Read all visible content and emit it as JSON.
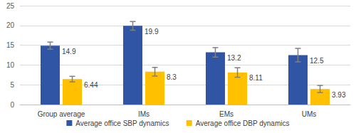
{
  "chart_data": {
    "type": "bar",
    "categories": [
      "Group average",
      "IMs",
      "EMs",
      "UMs"
    ],
    "series": [
      {
        "name": "Average office SBP dynamics",
        "color": "#2f55a4",
        "values": [
          14.9,
          19.9,
          13.2,
          12.5
        ],
        "errors": [
          0.9,
          1.1,
          1.2,
          1.7
        ]
      },
      {
        "name": "Average office DBP dynamics",
        "color": "#ffc000",
        "values": [
          6.44,
          8.3,
          8.11,
          3.93
        ],
        "errors": [
          0.7,
          1.1,
          1.2,
          0.9
        ]
      }
    ],
    "ylim": [
      0,
      25
    ],
    "yticks": [
      0,
      5,
      10,
      15,
      20,
      25
    ],
    "grid": true,
    "legend": "bottom",
    "data_labels": true
  }
}
